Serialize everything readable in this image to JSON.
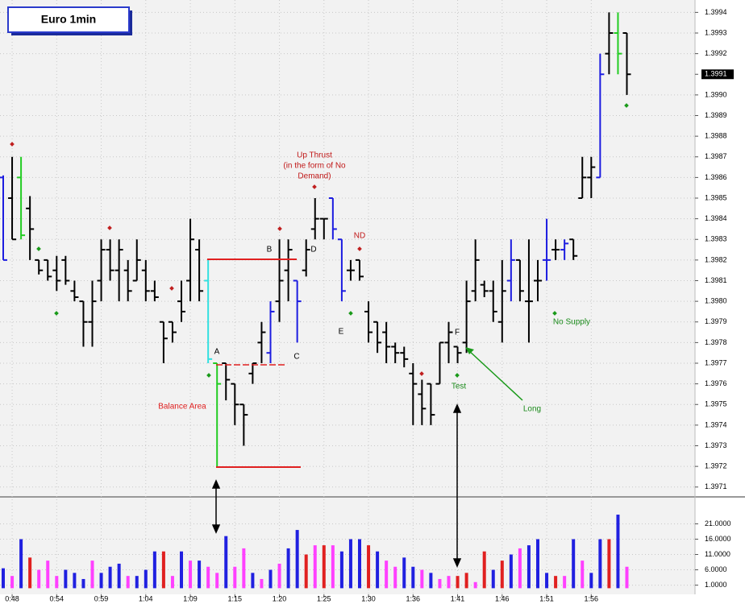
{
  "chart_data": [
    {
      "type": "ohlc",
      "title": "Euro 1min",
      "categories": [
        null,
        "0:48",
        null,
        null,
        null,
        null,
        "0:54",
        null,
        null,
        null,
        null,
        "0:59",
        null,
        null,
        null,
        null,
        "1:04",
        null,
        null,
        null,
        null,
        "1:09",
        null,
        null,
        null,
        null,
        "1:15",
        null,
        null,
        null,
        null,
        "1:20",
        null,
        null,
        null,
        null,
        "1:25",
        null,
        null,
        null,
        null,
        "1:30",
        null,
        null,
        null,
        null,
        "1:36",
        null,
        null,
        null,
        null,
        "1:41",
        null,
        null,
        null,
        null,
        "1:46",
        null,
        null,
        null,
        null,
        "1:51",
        null,
        null,
        null,
        null,
        "1:56",
        null,
        null,
        null,
        null
      ],
      "open": [
        1.3986,
        1.3985,
        1.3986,
        1.39845,
        1.3982,
        1.3982,
        1.39815,
        1.3982,
        1.39805,
        1.398,
        1.3979,
        1.3981,
        1.39825,
        1.39815,
        1.39815,
        1.3981,
        1.39815,
        1.39805,
        1.3979,
        1.3979,
        1.398,
        1.3981,
        1.39825,
        1.3981,
        1.3977,
        1.3977,
        1.3976,
        1.3975,
        1.39765,
        1.3978,
        1.39775,
        1.398,
        1.39815,
        1.3981,
        1.39815,
        1.39835,
        1.3984,
        1.3985,
        1.3983,
        1.39815,
        1.3982,
        1.39795,
        1.3979,
        1.39785,
        1.39778,
        1.39775,
        1.39765,
        1.39755,
        1.3976,
        1.3976,
        1.3978,
        1.39778,
        1.3978,
        1.39805,
        1.39808,
        1.39805,
        1.3979,
        1.3981,
        1.3982,
        1.398,
        1.3981,
        1.3982,
        1.39825,
        1.39825,
        1.3983,
        1.3985,
        1.3986,
        1.3986,
        1.3992,
        1.3993,
        1.3993
      ],
      "high": [
        1.39861,
        1.3987,
        1.3987,
        1.39851,
        1.3982,
        1.3982,
        1.39822,
        1.39822,
        1.3981,
        1.398,
        1.3981,
        1.3983,
        1.3983,
        1.3983,
        1.3982,
        1.3983,
        1.3982,
        1.3981,
        1.3979,
        1.3979,
        1.3981,
        1.3984,
        1.3983,
        1.3982,
        1.3977,
        1.3977,
        1.3976,
        1.3975,
        1.3977,
        1.3979,
        1.398,
        1.3983,
        1.3983,
        1.3981,
        1.3983,
        1.3985,
        1.3984,
        1.3985,
        1.3983,
        1.3982,
        1.3982,
        1.398,
        1.3979,
        1.3979,
        1.3978,
        1.39778,
        1.3977,
        1.39762,
        1.3976,
        1.3978,
        1.3979,
        1.39778,
        1.3981,
        1.3983,
        1.3981,
        1.3981,
        1.3982,
        1.3983,
        1.3982,
        1.3983,
        1.3982,
        1.3984,
        1.3983,
        1.3983,
        1.3983,
        1.3987,
        1.3987,
        1.3992,
        1.3994,
        1.3994,
        1.3993
      ],
      "low": [
        1.3982,
        1.3983,
        1.3983,
        1.3982,
        1.39813,
        1.3981,
        1.39805,
        1.39808,
        1.398,
        1.39778,
        1.39778,
        1.398,
        1.3981,
        1.398,
        1.398,
        1.3981,
        1.398,
        1.398,
        1.3977,
        1.3978,
        1.3979,
        1.398,
        1.398,
        1.3977,
        1.3972,
        1.39752,
        1.3974,
        1.3973,
        1.3976,
        1.3977,
        1.3977,
        1.3979,
        1.398,
        1.3978,
        1.39812,
        1.3983,
        1.3983,
        1.3983,
        1.398,
        1.3981,
        1.3981,
        1.3978,
        1.39775,
        1.3977,
        1.3977,
        1.39768,
        1.3974,
        1.3974,
        1.3974,
        1.3976,
        1.3977,
        1.3977,
        1.39775,
        1.398,
        1.39802,
        1.3979,
        1.3978,
        1.398,
        1.398,
        1.3978,
        1.398,
        1.3981,
        1.3982,
        1.3982,
        1.3982,
        1.3985,
        1.3985,
        1.3986,
        1.3991,
        1.3991,
        1.399
      ],
      "close": [
        1.3982,
        1.3983,
        1.39832,
        1.39835,
        1.39815,
        1.39812,
        1.3981,
        1.3981,
        1.39802,
        1.3979,
        1.398,
        1.39825,
        1.39815,
        1.39825,
        1.39805,
        1.3982,
        1.39805,
        1.39802,
        1.39782,
        1.39785,
        1.39795,
        1.3983,
        1.39805,
        1.39772,
        1.3976,
        1.39762,
        1.3975,
        1.39745,
        1.3977,
        1.39785,
        1.39795,
        1.3981,
        1.39825,
        1.398,
        1.39825,
        1.3984,
        1.3984,
        1.39835,
        1.39805,
        1.39815,
        1.39812,
        1.39785,
        1.3978,
        1.39778,
        1.39775,
        1.39772,
        1.3976,
        1.39748,
        1.39745,
        1.3978,
        1.39785,
        1.39775,
        1.398,
        1.3982,
        1.39805,
        1.39795,
        1.39805,
        1.3982,
        1.39805,
        1.398,
        1.3981,
        1.3982,
        1.39825,
        1.39828,
        1.39822,
        1.3986,
        1.39865,
        1.3991,
        1.3993,
        1.3992,
        1.3991
      ],
      "colors": [
        "#1c1ce0",
        "#000000",
        "#22cc22",
        "#000000",
        "#000000",
        "#000000",
        "#000000",
        "#000000",
        "#000000",
        "#000000",
        "#000000",
        "#000000",
        "#000000",
        "#000000",
        "#000000",
        "#000000",
        "#000000",
        "#000000",
        "#000000",
        "#000000",
        "#000000",
        "#000000",
        "#000000",
        "#33e0e0",
        "#22cc22",
        "#000000",
        "#000000",
        "#000000",
        "#000000",
        "#000000",
        "#1c1ce0",
        "#000000",
        "#000000",
        "#1c1ce0",
        "#000000",
        "#000000",
        "#000000",
        "#1c1ce0",
        "#1c1ce0",
        "#000000",
        "#000000",
        "#000000",
        "#000000",
        "#000000",
        "#000000",
        "#000000",
        "#000000",
        "#000000",
        "#000000",
        "#000000",
        "#000000",
        "#000000",
        "#000000",
        "#000000",
        "#000000",
        "#000000",
        "#000000",
        "#1c1ce0",
        "#000000",
        "#000000",
        "#000000",
        "#1c1ce0",
        "#000000",
        "#1c1ce0",
        "#000000",
        "#000000",
        "#000000",
        "#1c1ce0",
        "#000000",
        "#22cc22",
        "#000000"
      ],
      "ylim": [
        1.39706,
        1.39946
      ],
      "yticks": [
        1.3994,
        1.3993,
        1.3992,
        {
          "value": 1.399,
          "label": "1.3990"
        },
        1.3989,
        1.3988,
        1.3987,
        1.3986,
        1.3985,
        1.3984,
        1.3983,
        1.3982,
        1.3981,
        {
          "value": 1.398,
          "label": "1.3980"
        },
        1.3979,
        1.3978,
        1.3977,
        1.3976,
        1.3975,
        1.3974,
        1.3973,
        1.3972,
        1.3971
      ],
      "current_price": 1.3991,
      "grid": true,
      "annotations": [
        "Up Thrust",
        "(in the form of No",
        "Demand)",
        "ND",
        "A",
        "B",
        "C",
        "D",
        "E",
        "F",
        "Balance Area",
        "Test",
        "Long",
        "No Supply"
      ]
    },
    {
      "type": "bar",
      "values": [
        6.5,
        4,
        16,
        10,
        6,
        9,
        4,
        6,
        5,
        3,
        9,
        5,
        7,
        8,
        4,
        4,
        6,
        12,
        12,
        4,
        12,
        9,
        9,
        7,
        5,
        17,
        7,
        13,
        5,
        3,
        6,
        8,
        13,
        19,
        11,
        14,
        14,
        14,
        12,
        16,
        16,
        14,
        12,
        9,
        7,
        10,
        7,
        6,
        5,
        3,
        4,
        4,
        5,
        2,
        12,
        6,
        9,
        11,
        13,
        14,
        16,
        5,
        4,
        4,
        16,
        9,
        5,
        16,
        16,
        24,
        7
      ],
      "colors": [
        "#2020e0",
        "#ff40ff",
        "#2020e0",
        "#e02020",
        "#ff40ff",
        "#ff40ff",
        "#ff40ff",
        "#2020e0",
        "#2020e0",
        "#2020e0",
        "#ff40ff",
        "#2020e0",
        "#2020e0",
        "#2020e0",
        "#ff40ff",
        "#2020e0",
        "#2020e0",
        "#2020e0",
        "#e02020",
        "#ff40ff",
        "#2020e0",
        "#ff40ff",
        "#2020e0",
        "#ff40ff",
        "#ff40ff",
        "#2020e0",
        "#ff40ff",
        "#ff40ff",
        "#2020e0",
        "#ff40ff",
        "#2020e0",
        "#ff40ff",
        "#2020e0",
        "#2020e0",
        "#e02020",
        "#ff40ff",
        "#e02020",
        "#ff40ff",
        "#2020e0",
        "#2020e0",
        "#2020e0",
        "#e02020",
        "#2020e0",
        "#ff40ff",
        "#ff40ff",
        "#2020e0",
        "#2020e0",
        "#ff40ff",
        "#2020e0",
        "#ff40ff",
        "#ff40ff",
        "#e02020",
        "#e02020",
        "#ff40ff",
        "#e02020",
        "#2020e0",
        "#e02020",
        "#2020e0",
        "#ff40ff",
        "#2020e0",
        "#2020e0",
        "#2020e0",
        "#e02020",
        "#ff40ff",
        "#2020e0",
        "#ff40ff",
        "#2020e0",
        "#2020e0",
        "#e02020",
        "#2020e0",
        "#ff40ff"
      ],
      "ylim": [
        -2,
        29
      ],
      "yticks": [
        {
          "value": 21,
          "label": "21.0000"
        },
        {
          "value": 16,
          "label": "16.0000"
        },
        {
          "value": 11,
          "label": "11.0000"
        },
        {
          "value": 6,
          "label": "6.0000"
        },
        {
          "value": 1,
          "label": "1.0000"
        }
      ]
    }
  ]
}
